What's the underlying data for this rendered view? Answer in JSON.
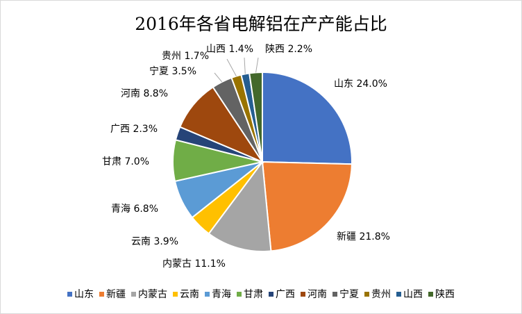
{
  "chart_data": {
    "type": "pie",
    "title": "2016年各省电解铝在产产能占比",
    "legend_position": "bottom",
    "categories": [
      "山东",
      "新疆",
      "内蒙古",
      "云南",
      "青海",
      "甘肃",
      "广西",
      "河南",
      "宁夏",
      "贵州",
      "山西",
      "陕西"
    ],
    "values": [
      24.0,
      21.8,
      11.1,
      3.9,
      6.8,
      7.0,
      2.3,
      8.8,
      3.5,
      1.7,
      1.4,
      2.2
    ],
    "value_labels": [
      "24.0%",
      "21.8%",
      "11.1%",
      "3.9%",
      "6.8%",
      "7.0%",
      "2.3%",
      "8.8%",
      "3.5%",
      "1.7%",
      "1.4%",
      "2.2%"
    ],
    "colors": [
      "#4472C4",
      "#ED7D31",
      "#A5A5A5",
      "#FFC000",
      "#5B9BD5",
      "#70AD47",
      "#264478",
      "#9E480E",
      "#636363",
      "#997300",
      "#255E91",
      "#43682B"
    ]
  }
}
